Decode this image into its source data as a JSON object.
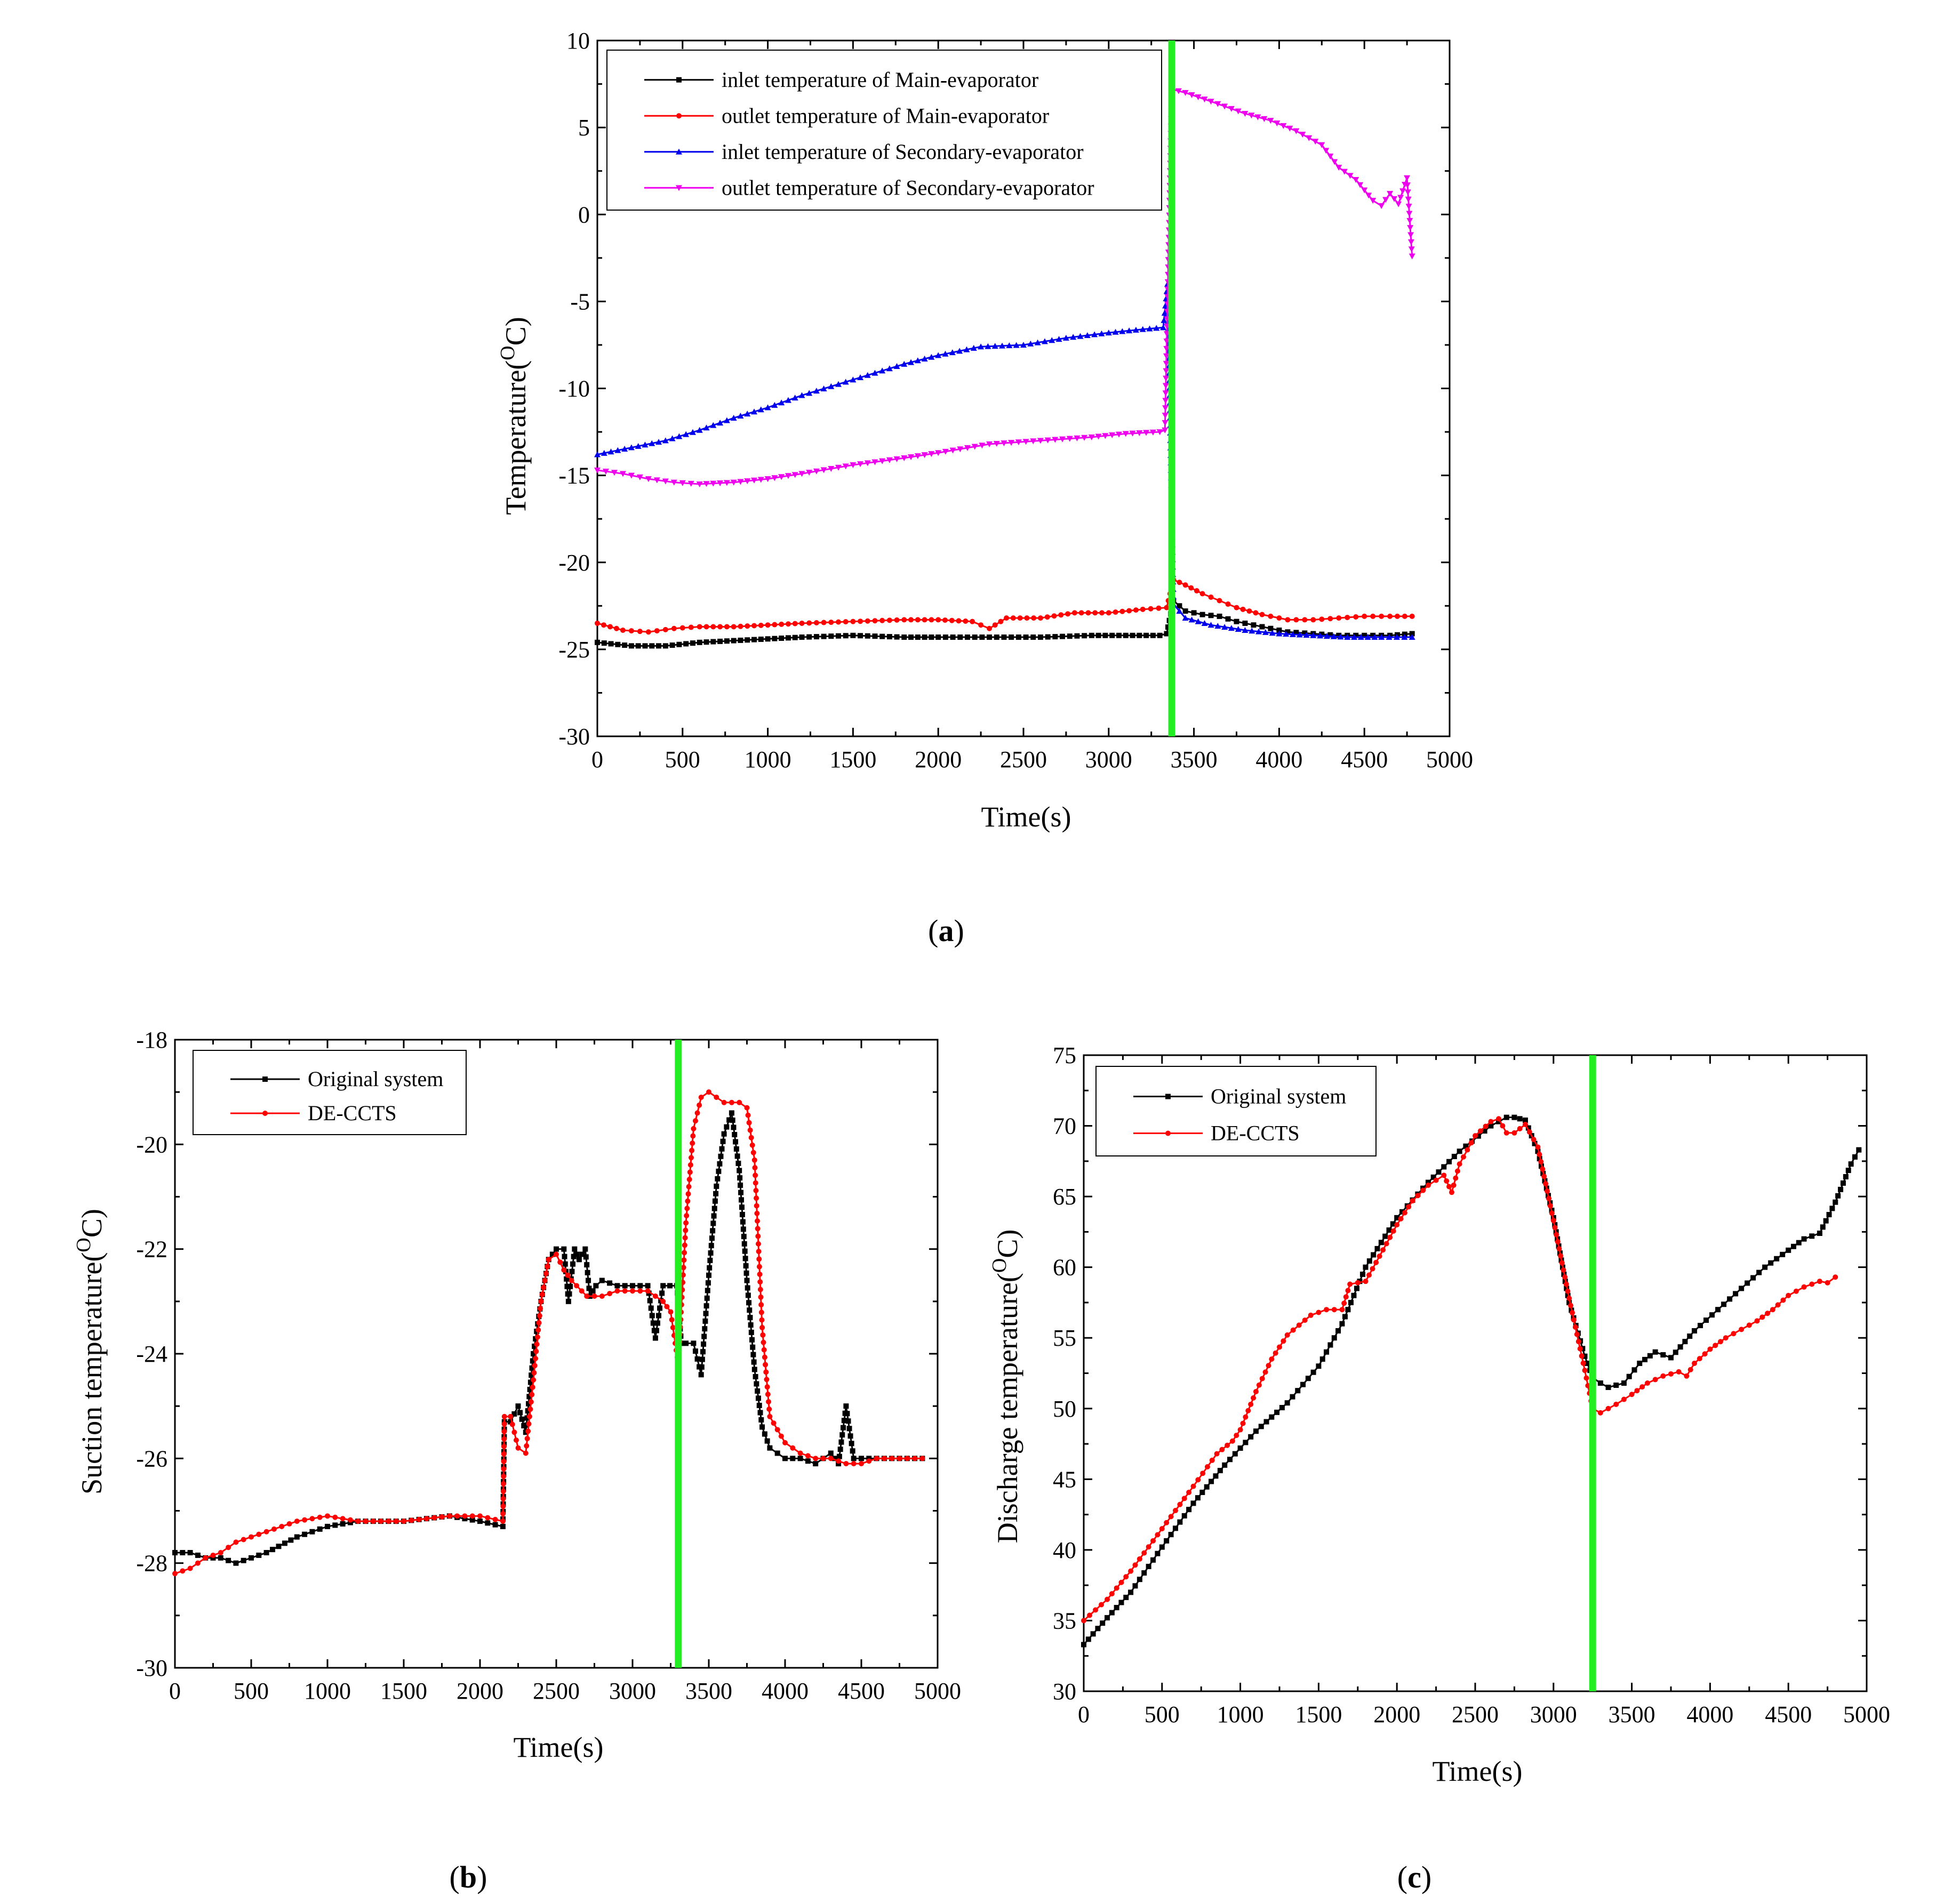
{
  "figure": {
    "panels": [
      {
        "id": "a",
        "label": "a"
      },
      {
        "id": "b",
        "label": "b"
      },
      {
        "id": "c",
        "label": "c"
      }
    ]
  },
  "chart_data": [
    {
      "id": "a",
      "type": "line",
      "xlabel": "Time(s)",
      "ylabel": "Temperature(",
      "ylabel_sup": "O",
      "ylabel_end": "C)",
      "xlim": [
        0,
        5000
      ],
      "ylim": [
        -30,
        10
      ],
      "xticks": [
        0,
        500,
        1000,
        1500,
        2000,
        2500,
        3000,
        3500,
        4000,
        4500,
        5000
      ],
      "yticks": [
        -30,
        -25,
        -20,
        -15,
        -10,
        -5,
        0,
        5,
        10
      ],
      "marker_line": {
        "x": 3370,
        "color": "#22ee22"
      },
      "legend_position": "top-left",
      "series": [
        {
          "name": "inlet temperature of Main-evaporator",
          "color": "#000000",
          "marker": "square",
          "x": [
            0,
            200,
            400,
            600,
            800,
            1000,
            1200,
            1500,
            1800,
            2000,
            2300,
            2600,
            2900,
            3100,
            3300,
            3340,
            3380,
            3450,
            3550,
            3650,
            3750,
            3900,
            4050,
            4200,
            4350,
            4500,
            4650,
            4780
          ],
          "y": [
            -24.6,
            -24.8,
            -24.8,
            -24.6,
            -24.5,
            -24.4,
            -24.3,
            -24.2,
            -24.3,
            -24.3,
            -24.3,
            -24.3,
            -24.2,
            -24.2,
            -24.2,
            -24.1,
            -22.2,
            -22.8,
            -23,
            -23.1,
            -23.4,
            -23.7,
            -24,
            -24.1,
            -24.2,
            -24.2,
            -24.2,
            -24.1
          ]
        },
        {
          "name": "outlet temperature of Main-evaporator",
          "color": "#ff0000",
          "marker": "circle",
          "x": [
            0,
            150,
            300,
            450,
            600,
            800,
            1000,
            1200,
            1500,
            1800,
            2000,
            2200,
            2300,
            2400,
            2600,
            2800,
            3000,
            3200,
            3340,
            3380,
            3450,
            3550,
            3650,
            3750,
            3900,
            4050,
            4200,
            4350,
            4500,
            4650,
            4780
          ],
          "y": [
            -23.5,
            -23.9,
            -24,
            -23.8,
            -23.7,
            -23.7,
            -23.6,
            -23.5,
            -23.4,
            -23.3,
            -23.3,
            -23.4,
            -23.8,
            -23.2,
            -23.2,
            -22.9,
            -22.9,
            -22.7,
            -22.6,
            -21,
            -21.3,
            -21.8,
            -22.2,
            -22.6,
            -23,
            -23.3,
            -23.3,
            -23.2,
            -23.1,
            -23.1,
            -23.1
          ]
        },
        {
          "name": "inlet temperature of Secondary-evaporator",
          "color": "#0000ee",
          "marker": "triangle-up",
          "x": [
            0,
            200,
            400,
            600,
            800,
            1000,
            1200,
            1500,
            1800,
            2000,
            2250,
            2500,
            2750,
            3000,
            3200,
            3320,
            3345,
            3380,
            3450,
            3600,
            3800,
            4000,
            4200,
            4400,
            4600,
            4780
          ],
          "y": [
            -13.8,
            -13.4,
            -13,
            -12.4,
            -11.7,
            -11.1,
            -10.4,
            -9.5,
            -8.6,
            -8.1,
            -7.6,
            -7.5,
            -7.1,
            -6.8,
            -6.6,
            -6.5,
            -4,
            -22.4,
            -23.2,
            -23.6,
            -23.9,
            -24.1,
            -24.2,
            -24.3,
            -24.3,
            -24.3
          ]
        },
        {
          "name": "outlet temperature of Secondary-evaporator",
          "color": "#ee00ee",
          "marker": "triangle-down",
          "x": [
            0,
            150,
            300,
            450,
            600,
            800,
            1000,
            1200,
            1500,
            1800,
            2000,
            2300,
            2600,
            2900,
            3100,
            3300,
            3330,
            3370,
            3450,
            3600,
            3800,
            3950,
            4100,
            4250,
            4350,
            4450,
            4550,
            4600,
            4650,
            4700,
            4750,
            4780
          ],
          "y": [
            -14.7,
            -14.9,
            -15.2,
            -15.4,
            -15.5,
            -15.4,
            -15.2,
            -14.9,
            -14.4,
            -14,
            -13.7,
            -13.2,
            -13,
            -12.8,
            -12.6,
            -12.5,
            -12.4,
            7.2,
            7,
            6.5,
            5.8,
            5.4,
            4.8,
            4,
            2.7,
            2,
            0.8,
            0.5,
            1.2,
            0.6,
            2.1,
            -2.4
          ]
        }
      ]
    },
    {
      "id": "b",
      "type": "line",
      "xlabel": "Time(s)",
      "ylabel": "Suction temperature(",
      "ylabel_sup": "O",
      "ylabel_end": "C)",
      "xlim": [
        0,
        5000
      ],
      "ylim": [
        -30,
        -18
      ],
      "xticks": [
        0,
        500,
        1000,
        1500,
        2000,
        2500,
        3000,
        3500,
        4000,
        4500,
        5000
      ],
      "yticks": [
        -30,
        -28,
        -26,
        -24,
        -22,
        -20,
        -18
      ],
      "marker_line": {
        "x": 3300,
        "color": "#22ee22"
      },
      "legend_position": "top-left",
      "series": [
        {
          "name": "Original system",
          "color": "#000000",
          "marker": "square",
          "x": [
            0,
            100,
            200,
            300,
            400,
            500,
            600,
            800,
            1000,
            1200,
            1500,
            1800,
            2000,
            2150,
            2160,
            2200,
            2250,
            2300,
            2350,
            2400,
            2450,
            2500,
            2550,
            2580,
            2620,
            2650,
            2690,
            2720,
            2760,
            2800,
            2900,
            3000,
            3100,
            3150,
            3200,
            3290,
            3320,
            3350,
            3400,
            3450,
            3500,
            3550,
            3600,
            3650,
            3700,
            3750,
            3800,
            3850,
            3900,
            4000,
            4100,
            4200,
            4300,
            4350,
            4400,
            4450,
            4500,
            4600,
            4700,
            4800,
            4900
          ],
          "y": [
            -27.8,
            -27.8,
            -27.9,
            -27.9,
            -28,
            -27.9,
            -27.8,
            -27.5,
            -27.3,
            -27.2,
            -27.2,
            -27.1,
            -27.2,
            -27.3,
            -25.3,
            -25.3,
            -25,
            -25.5,
            -24,
            -23,
            -22.2,
            -22,
            -22,
            -23,
            -22,
            -22.2,
            -22,
            -22.9,
            -22.7,
            -22.6,
            -22.7,
            -22.7,
            -22.7,
            -23.7,
            -22.7,
            -22.7,
            -23.8,
            -23.8,
            -23.8,
            -24.4,
            -22.5,
            -20.8,
            -19.8,
            -19.4,
            -20.5,
            -22.6,
            -24.3,
            -25.4,
            -25.8,
            -26,
            -26,
            -26.1,
            -25.9,
            -26.1,
            -25,
            -26,
            -26,
            -26,
            -26,
            -26,
            -26
          ]
        },
        {
          "name": "DE-CCTS",
          "color": "#ff0000",
          "marker": "circle",
          "x": [
            0,
            100,
            200,
            300,
            400,
            500,
            600,
            800,
            1000,
            1200,
            1500,
            1800,
            2000,
            2150,
            2160,
            2200,
            2250,
            2300,
            2350,
            2400,
            2450,
            2500,
            2550,
            2600,
            2700,
            2800,
            2900,
            3000,
            3100,
            3200,
            3250,
            3280,
            3300,
            3350,
            3400,
            3450,
            3500,
            3600,
            3700,
            3750,
            3800,
            3850,
            3900,
            4000,
            4100,
            4200,
            4300,
            4400,
            4500,
            4600,
            4700,
            4800,
            4900
          ],
          "y": [
            -28.2,
            -28.1,
            -27.9,
            -27.8,
            -27.6,
            -27.5,
            -27.4,
            -27.2,
            -27.1,
            -27.2,
            -27.2,
            -27.1,
            -27.1,
            -27.2,
            -25.2,
            -25.2,
            -25.8,
            -25.9,
            -24.5,
            -23,
            -22.2,
            -22.1,
            -22.4,
            -22.6,
            -22.9,
            -22.9,
            -22.8,
            -22.8,
            -22.8,
            -23,
            -23.2,
            -23.8,
            -24.2,
            -21.5,
            -19.7,
            -19.1,
            -19,
            -19.2,
            -19.2,
            -19.3,
            -20.3,
            -23.5,
            -25.2,
            -25.7,
            -25.9,
            -26,
            -26,
            -26.1,
            -26.1,
            -26,
            -26,
            -26,
            -26
          ]
        }
      ]
    },
    {
      "id": "c",
      "type": "line",
      "xlabel": "Time(s)",
      "ylabel": "Discharge temperature(",
      "ylabel_sup": "O",
      "ylabel_end": "C)",
      "xlim": [
        0,
        5000
      ],
      "ylim": [
        30,
        75
      ],
      "xticks": [
        0,
        500,
        1000,
        1500,
        2000,
        2500,
        3000,
        3500,
        4000,
        4500,
        5000
      ],
      "yticks": [
        30,
        35,
        40,
        45,
        50,
        55,
        60,
        65,
        70,
        75
      ],
      "marker_line": {
        "x": 3250,
        "color": "#22ee22"
      },
      "legend_position": "top-left",
      "series": [
        {
          "name": "Original system",
          "color": "#000000",
          "marker": "square",
          "x": [
            0,
            150,
            300,
            500,
            700,
            900,
            1100,
            1300,
            1500,
            1650,
            1800,
            2000,
            2200,
            2400,
            2600,
            2700,
            2750,
            2820,
            2900,
            3000,
            3100,
            3200,
            3250,
            3300,
            3350,
            3450,
            3550,
            3650,
            3750,
            3900,
            4050,
            4200,
            4350,
            4500,
            4600,
            4700,
            4800,
            4900,
            4950
          ],
          "y": [
            33.3,
            35.2,
            37,
            40.2,
            43.3,
            46,
            48.4,
            50.4,
            53,
            56,
            60,
            63.5,
            66,
            68.2,
            70,
            70.6,
            70.6,
            70.4,
            68.2,
            63.5,
            57.5,
            53.7,
            52.2,
            51.8,
            51.5,
            51.8,
            53.2,
            54,
            53.6,
            55.5,
            57,
            58.5,
            60,
            61.2,
            62,
            62.4,
            64.6,
            67.3,
            68.3
          ]
        },
        {
          "name": "DE-CCTS",
          "color": "#ff0000",
          "marker": "circle",
          "x": [
            0,
            150,
            300,
            500,
            700,
            850,
            950,
            1000,
            1100,
            1200,
            1300,
            1450,
            1550,
            1650,
            1700,
            1800,
            2000,
            2100,
            2200,
            2300,
            2350,
            2400,
            2500,
            2600,
            2650,
            2700,
            2750,
            2820,
            2900,
            3000,
            3100,
            3200,
            3250,
            3300,
            3400,
            3500,
            3600,
            3700,
            3800,
            3850,
            3900,
            4000,
            4100,
            4200,
            4300,
            4400,
            4500,
            4600,
            4700,
            4750,
            4800
          ],
          "y": [
            35,
            36.5,
            38.5,
            41.5,
            44.5,
            46.8,
            47.7,
            48.5,
            51.2,
            53.5,
            55.2,
            56.6,
            57,
            57,
            58.8,
            59,
            63,
            64.7,
            65.8,
            66.5,
            65.3,
            67.3,
            69.3,
            70.3,
            70.5,
            69.5,
            69.5,
            70.1,
            68.5,
            63.3,
            57.8,
            52.7,
            50,
            49.7,
            50.3,
            51,
            51.8,
            52.3,
            52.6,
            52.3,
            53.2,
            54.2,
            55,
            55.6,
            56.2,
            57,
            58,
            58.6,
            59,
            58.9,
            59.3
          ]
        }
      ]
    }
  ]
}
